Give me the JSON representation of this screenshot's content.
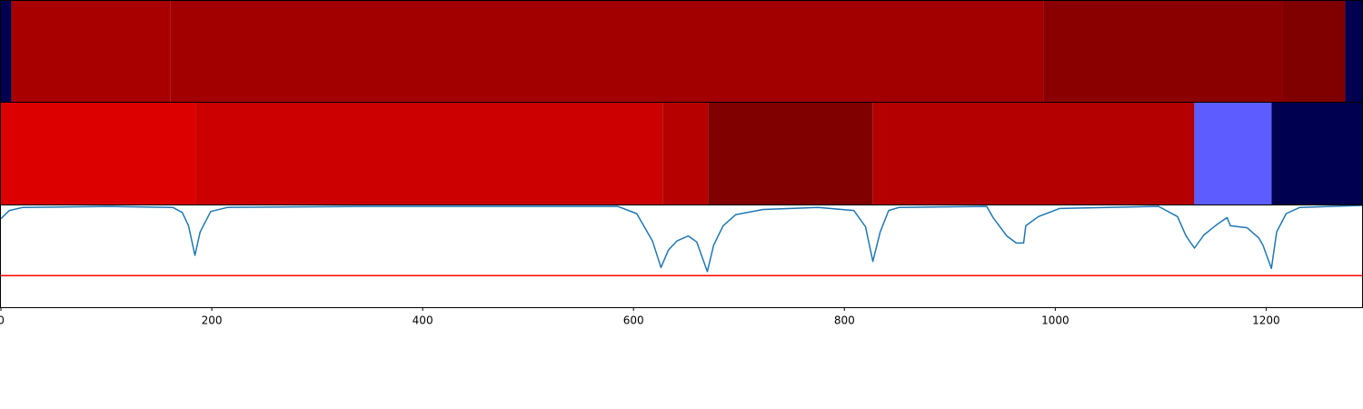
{
  "chart_data": [
    {
      "type": "strip",
      "xlim": [
        0,
        1291
      ],
      "edges": [
        0,
        10,
        161,
        989,
        1216,
        1275,
        1291
      ],
      "colors": [
        "#000050",
        "#a80000",
        "#a20000",
        "#8a0000",
        "#800000",
        "#000050"
      ]
    },
    {
      "type": "strip",
      "xlim": [
        0,
        1291
      ],
      "edges": [
        0,
        184.5,
        627.6,
        670.7,
        826.7,
        1131.9,
        1205.2,
        1291
      ],
      "colors": [
        "#dc0000",
        "#cc0000",
        "#b60000",
        "#800000",
        "#b40000",
        "#5c5cff",
        "#000050"
      ]
    },
    {
      "type": "line",
      "xlim": [
        0,
        1291
      ],
      "ylim": [
        0,
        1
      ],
      "xticks": [
        0,
        200,
        400,
        600,
        800,
        1000,
        1200
      ],
      "color": "#1f77b4",
      "threshold": 0.31,
      "threshold_color": "#ff0000",
      "x": [
        0,
        8,
        21,
        103,
        163,
        172,
        178,
        184,
        189,
        199,
        215,
        344,
        585,
        603,
        613,
        618,
        626,
        633,
        641,
        652,
        660,
        670,
        676,
        685,
        697,
        723,
        775,
        809,
        820,
        827,
        834,
        842,
        852,
        935,
        941,
        954,
        963,
        970,
        972,
        984,
        1004,
        1098,
        1116,
        1124,
        1132,
        1141,
        1153,
        1163,
        1166,
        1182,
        1193,
        1197,
        1205,
        1210,
        1219,
        1232,
        1291
      ],
      "values": [
        0.87,
        0.95,
        0.98,
        0.99,
        0.98,
        0.93,
        0.8,
        0.51,
        0.74,
        0.94,
        0.98,
        0.99,
        0.99,
        0.92,
        0.74,
        0.65,
        0.39,
        0.56,
        0.65,
        0.7,
        0.64,
        0.35,
        0.61,
        0.8,
        0.91,
        0.96,
        0.98,
        0.95,
        0.79,
        0.45,
        0.74,
        0.95,
        0.98,
        0.99,
        0.88,
        0.7,
        0.63,
        0.63,
        0.8,
        0.89,
        0.97,
        0.99,
        0.89,
        0.7,
        0.58,
        0.71,
        0.81,
        0.88,
        0.8,
        0.78,
        0.68,
        0.61,
        0.38,
        0.74,
        0.92,
        0.98,
        1.0
      ]
    }
  ]
}
